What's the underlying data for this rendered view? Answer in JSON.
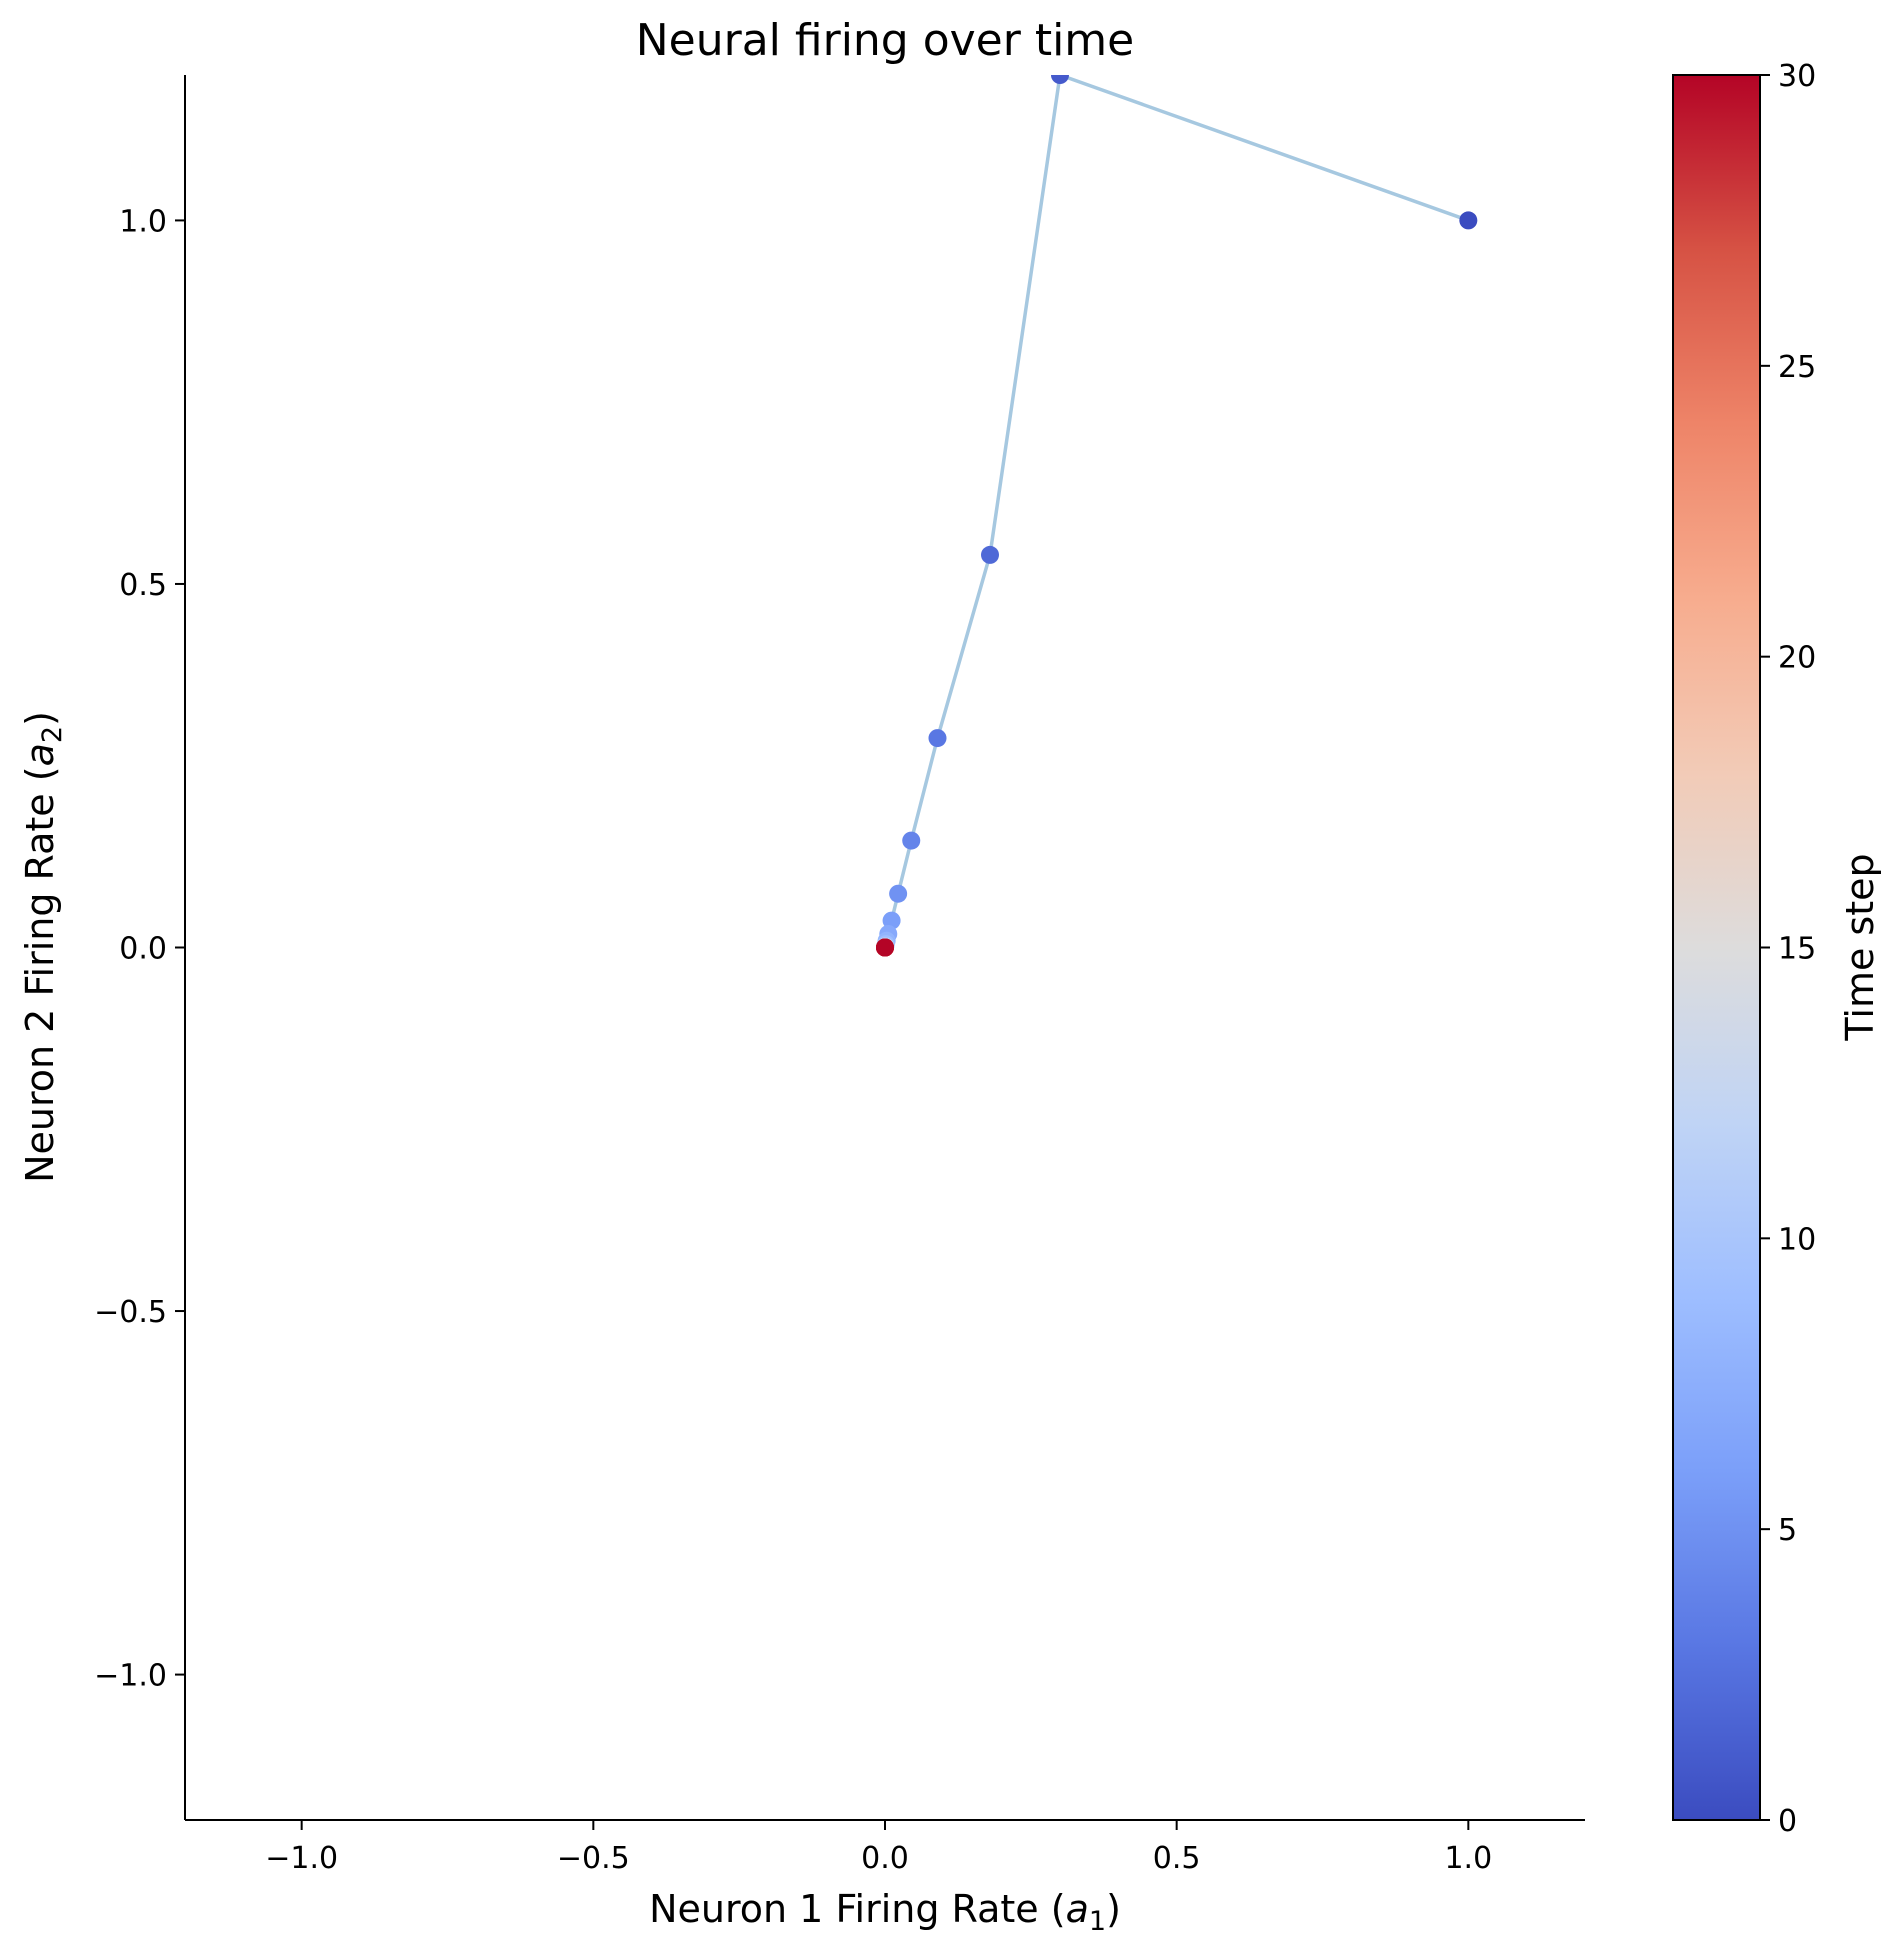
{
  "chart_data": {
    "type": "scatter",
    "title": "Neural firing over time",
    "xlabel": "Neuron 1 Firing Rate (a1)",
    "xlabel_parts": {
      "main": "Neuron 1 Firing Rate (",
      "var": "a",
      "sub": "1",
      "close": ")"
    },
    "ylabel": "Neuron 2 Firing Rate (a2)",
    "ylabel_parts": {
      "main": "Neuron 2 Firing Rate (",
      "var": "a",
      "sub": "2",
      "close": ")"
    },
    "xlim": [
      -1.2,
      1.2
    ],
    "ylim": [
      -1.2,
      1.2
    ],
    "xticks": [
      -1.0,
      -0.5,
      0.0,
      0.5,
      1.0
    ],
    "xtick_labels": [
      "−1.0",
      "−0.5",
      "0.0",
      "0.5",
      "1.0"
    ],
    "yticks": [
      -1.0,
      -0.5,
      0.0,
      0.5,
      1.0
    ],
    "ytick_labels": [
      "−1.0",
      "−0.5",
      "0.0",
      "0.5",
      "1.0"
    ],
    "grid": false,
    "line_color": "#a6c8e0",
    "colormap": "coolwarm",
    "colorbar": {
      "label": "Time step",
      "range": [
        0,
        30
      ],
      "ticks": [
        0,
        5,
        10,
        15,
        20,
        25,
        30
      ],
      "tick_labels": [
        "0",
        "5",
        "10",
        "15",
        "20",
        "25",
        "30"
      ],
      "stops": [
        "#3b4cc0",
        "#5977e3",
        "#7b9ff9",
        "#9ebeff",
        "#c0d4f5",
        "#dddcdc",
        "#f2cbb7",
        "#f7ac8e",
        "#ee8468",
        "#d65244",
        "#b40426"
      ]
    },
    "series": [
      {
        "x": [
          1.0,
          0.3,
          0.18,
          0.09,
          0.045,
          0.0225,
          0.0113,
          0.0056,
          0.0028,
          0.0014,
          0.0007,
          0.00035,
          0.00018,
          0.0001,
          5e-05,
          2e-05,
          1e-05,
          0,
          0,
          0,
          0,
          0,
          0,
          0,
          0,
          0,
          0,
          0,
          0,
          0,
          0
        ],
        "y": [
          1.0,
          1.2,
          0.54,
          0.288,
          0.147,
          0.074,
          0.037,
          0.0186,
          0.0093,
          0.0047,
          0.0023,
          0.0012,
          0.0006,
          0.0003,
          0.00015,
          7e-05,
          4e-05,
          2e-05,
          1e-05,
          0,
          0,
          0,
          0,
          0,
          0,
          0,
          0,
          0,
          0,
          0,
          0
        ],
        "t": [
          0,
          1,
          2,
          3,
          4,
          5,
          6,
          7,
          8,
          9,
          10,
          11,
          12,
          13,
          14,
          15,
          16,
          17,
          18,
          19,
          20,
          21,
          22,
          23,
          24,
          25,
          26,
          27,
          28,
          29,
          30
        ]
      }
    ]
  }
}
